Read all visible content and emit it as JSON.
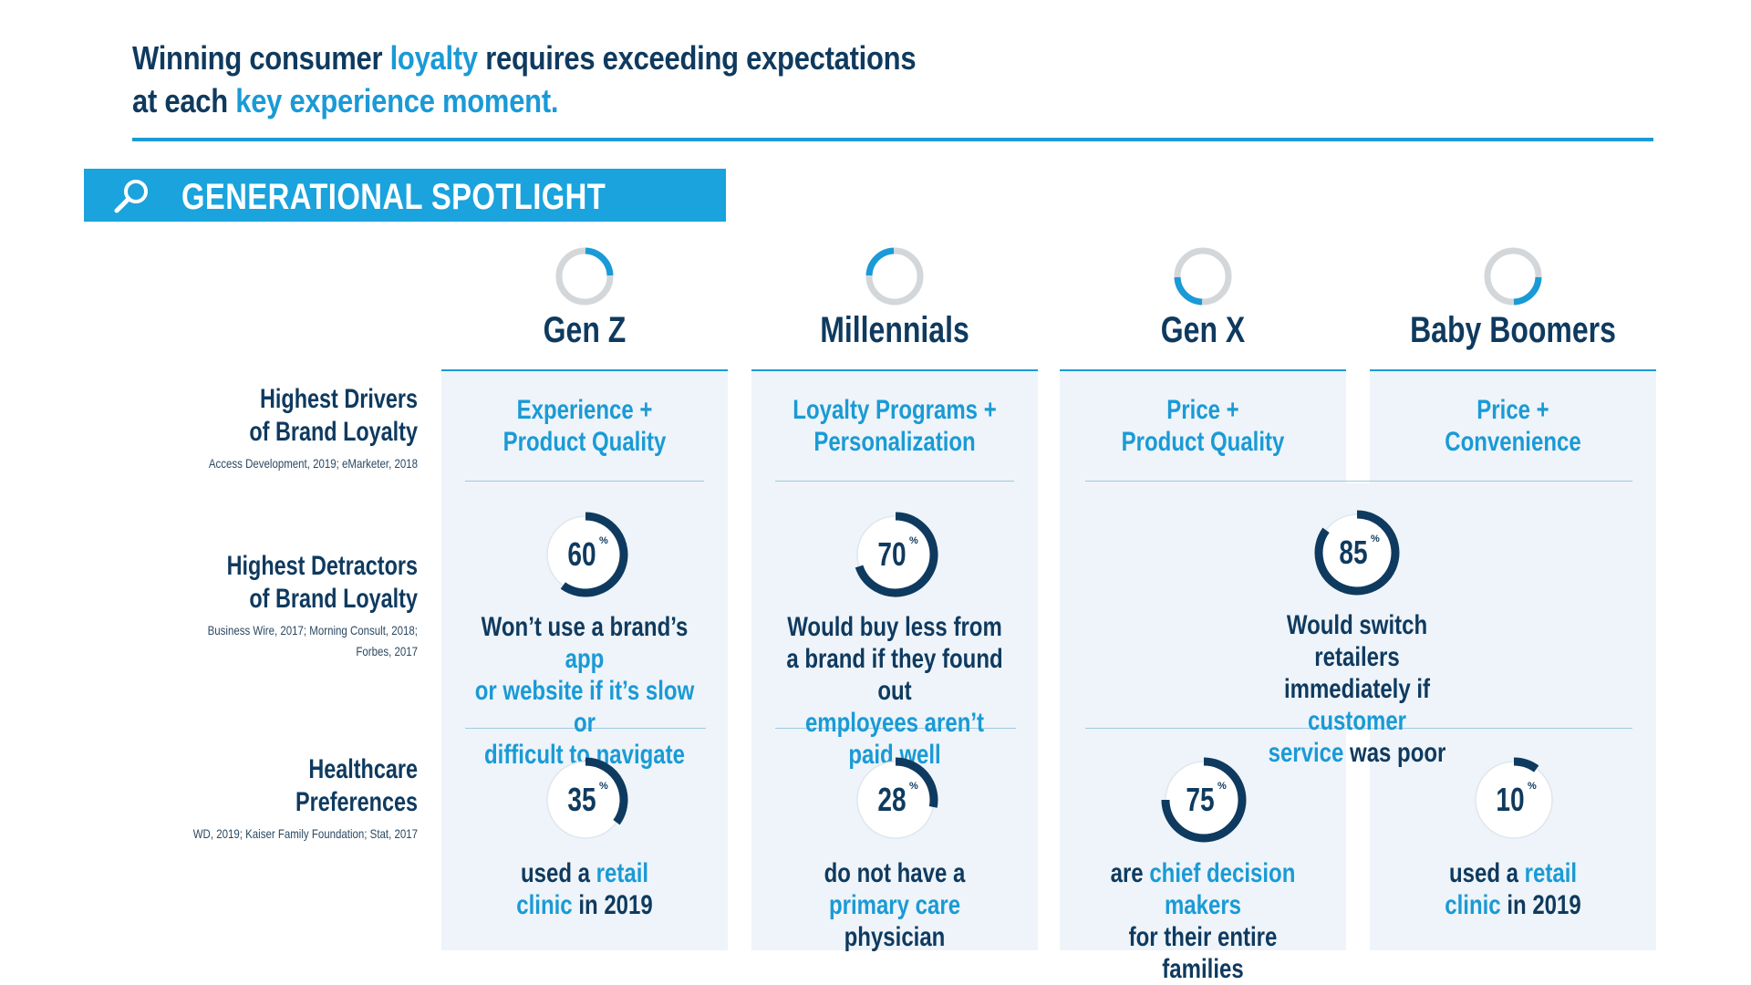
{
  "headline": {
    "line1": [
      {
        "text": "Winning consumer ",
        "hl": false
      },
      {
        "text": "loyalty",
        "hl": true
      },
      {
        "text": " requires exceeding expectations",
        "hl": false
      }
    ],
    "line2": [
      {
        "text": "at each ",
        "hl": false
      },
      {
        "text": "key experience moment.",
        "hl": true
      }
    ]
  },
  "banner": {
    "title": "GENERATIONAL SPOTLIGHT",
    "icon": "search-icon"
  },
  "colors": {
    "accent": "#1a9ad6",
    "navy": "#0f3a5f",
    "panel": "#eef4f9",
    "ring_gray": "#d4d7da"
  },
  "generations": [
    {
      "name": "Gen Z",
      "ring_segment": 0
    },
    {
      "name": "Millennials",
      "ring_segment": 3
    },
    {
      "name": "Gen X",
      "ring_segment": 2
    },
    {
      "name": "Baby Boomers",
      "ring_segment": 1
    }
  ],
  "rows": [
    {
      "label": [
        "Highest Drivers",
        "of Brand Loyalty"
      ],
      "source": [
        "Access Development, 2019; eMarketer, 2018"
      ]
    },
    {
      "label": [
        "Highest Detractors",
        "of Brand Loyalty"
      ],
      "source": [
        "Business Wire, 2017; Morning Consult, 2018;",
        "Forbes, 2017"
      ]
    },
    {
      "label": [
        "Healthcare",
        "Preferences"
      ],
      "source": [
        "WD, 2019; Kaiser Family Foundation; Stat, 2017"
      ]
    }
  ],
  "drivers": [
    [
      "Experience +",
      "Product Quality"
    ],
    [
      "Loyalty Programs +",
      "Personalization"
    ],
    [
      "Price +",
      "Product Quality"
    ],
    [
      "Price +",
      "Convenience"
    ]
  ],
  "detractors": [
    {
      "value": 60,
      "text": [
        [
          {
            "t": "Won’t use a brand’s ",
            "hl": false
          },
          {
            "t": "app",
            "hl": true
          }
        ],
        [
          {
            "t": "or website if it’s slow or",
            "hl": true
          }
        ],
        [
          {
            "t": "difficult to navigate",
            "hl": true
          }
        ]
      ]
    },
    {
      "value": 70,
      "text": [
        [
          {
            "t": "Would buy less from",
            "hl": false
          }
        ],
        [
          {
            "t": "a brand if they found out",
            "hl": false
          }
        ],
        [
          {
            "t": "employees aren’t paid well",
            "hl": true
          }
        ]
      ]
    },
    {
      "value": 85,
      "span": true,
      "text": [
        [
          {
            "t": "Would switch retailers",
            "hl": false
          }
        ],
        [
          {
            "t": "immediately if ",
            "hl": false
          },
          {
            "t": "customer",
            "hl": true
          }
        ],
        [
          {
            "t": "service",
            "hl": true
          },
          {
            "t": " was poor",
            "hl": false
          }
        ]
      ]
    }
  ],
  "healthcare": [
    {
      "value": 35,
      "text": [
        [
          {
            "t": "used a ",
            "hl": false
          },
          {
            "t": "retail",
            "hl": true
          }
        ],
        [
          {
            "t": "clinic",
            "hl": true
          },
          {
            "t": " in 2019",
            "hl": false
          }
        ]
      ]
    },
    {
      "value": 28,
      "text": [
        [
          {
            "t": "do not have a",
            "hl": false
          }
        ],
        [
          {
            "t": "primary care",
            "hl": true
          },
          {
            "t": " physician",
            "hl": false
          }
        ]
      ]
    },
    {
      "value": 75,
      "text": [
        [
          {
            "t": "are ",
            "hl": false
          },
          {
            "t": "chief decision makers",
            "hl": true
          }
        ],
        [
          {
            "t": "for their entire families",
            "hl": false
          }
        ]
      ]
    },
    {
      "value": 10,
      "text": [
        [
          {
            "t": "used a ",
            "hl": false
          },
          {
            "t": "retail",
            "hl": true
          }
        ],
        [
          {
            "t": "clinic",
            "hl": true
          },
          {
            "t": " in 2019",
            "hl": false
          }
        ]
      ]
    }
  ],
  "percent_symbol": "%"
}
